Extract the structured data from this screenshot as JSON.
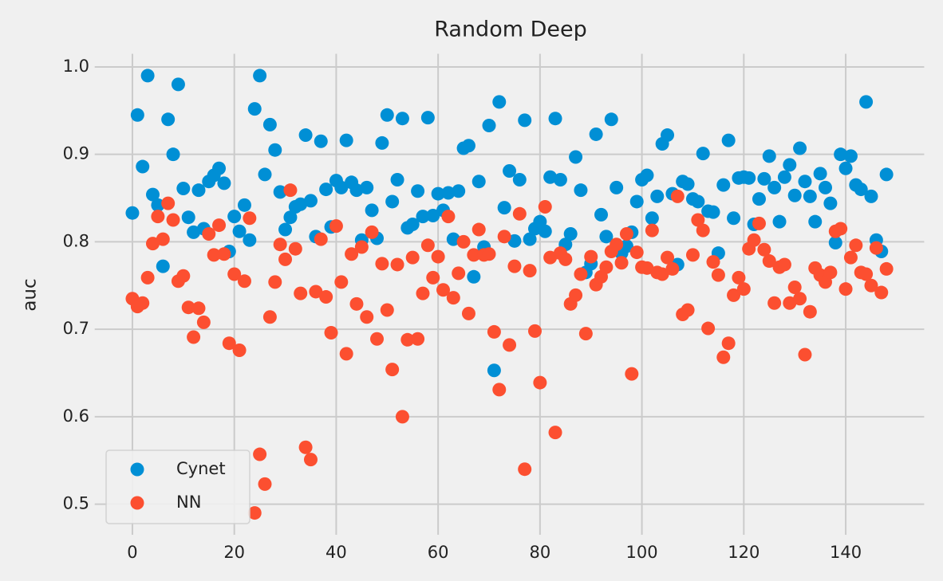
{
  "chart_data": {
    "type": "scatter",
    "title": "Random Deep",
    "ylabel": "auc",
    "x": [
      0,
      1,
      2,
      3,
      4,
      5,
      6,
      7,
      8,
      9,
      10,
      11,
      12,
      13,
      14,
      15,
      16,
      17,
      18,
      19,
      20,
      21,
      22,
      23,
      24,
      25,
      26,
      27,
      28,
      29,
      30,
      31,
      32,
      33,
      34,
      35,
      36,
      37,
      38,
      39,
      40,
      41,
      42,
      43,
      44,
      45,
      46,
      47,
      48,
      49,
      50,
      51,
      52,
      53,
      54,
      55,
      56,
      57,
      58,
      59,
      60,
      61,
      62,
      63,
      64,
      65,
      66,
      67,
      68,
      69,
      70,
      71,
      72,
      73,
      74,
      75,
      76,
      77,
      78,
      79,
      80,
      81,
      82,
      83,
      84,
      85,
      86,
      87,
      88,
      89,
      90,
      91,
      92,
      93,
      94,
      95,
      96,
      97,
      98,
      99,
      100,
      101,
      102,
      103,
      104,
      105,
      106,
      107,
      108,
      109,
      110,
      111,
      112,
      113,
      114,
      115,
      116,
      117,
      118,
      119,
      120,
      121,
      122,
      123,
      124,
      125,
      126,
      127,
      128,
      129,
      130,
      131,
      132,
      133,
      134,
      135,
      136,
      137,
      138,
      139,
      140,
      141,
      142,
      143,
      144,
      145,
      146,
      147,
      148
    ],
    "series": [
      {
        "name": "Cynet",
        "color": "#008fd5",
        "values": [
          0.833,
          0.945,
          0.886,
          0.99,
          0.854,
          0.842,
          0.772,
          0.94,
          0.9,
          0.98,
          0.861,
          0.828,
          0.811,
          0.859,
          0.815,
          0.869,
          0.876,
          0.884,
          0.867,
          0.789,
          0.829,
          0.812,
          0.842,
          0.802,
          0.952,
          0.99,
          0.877,
          0.934,
          0.905,
          0.857,
          0.814,
          0.828,
          0.84,
          0.843,
          0.922,
          0.847,
          0.806,
          0.915,
          0.86,
          0.817,
          0.87,
          0.862,
          0.916,
          0.868,
          0.859,
          0.802,
          0.862,
          0.836,
          0.804,
          0.913,
          0.945,
          0.846,
          0.871,
          0.941,
          0.816,
          0.82,
          0.858,
          0.829,
          0.942,
          0.83,
          0.855,
          0.836,
          0.856,
          0.803,
          0.858,
          0.907,
          0.91,
          0.76,
          0.869,
          0.794,
          0.933,
          0.653,
          0.96,
          0.839,
          0.881,
          0.801,
          0.871,
          0.939,
          0.803,
          0.815,
          0.823,
          0.812,
          0.874,
          0.941,
          0.871,
          0.797,
          0.809,
          0.897,
          0.859,
          0.765,
          0.775,
          0.923,
          0.831,
          0.806,
          0.94,
          0.862,
          0.787,
          0.795,
          0.811,
          0.846,
          0.871,
          0.876,
          0.827,
          0.852,
          0.912,
          0.922,
          0.855,
          0.774,
          0.869,
          0.866,
          0.849,
          0.846,
          0.901,
          0.835,
          0.834,
          0.787,
          0.865,
          0.916,
          0.827,
          0.873,
          0.874,
          0.873,
          0.82,
          0.849,
          0.872,
          0.898,
          0.862,
          0.823,
          0.874,
          0.888,
          0.853,
          0.907,
          0.869,
          0.852,
          0.823,
          0.878,
          0.862,
          0.844,
          0.799,
          0.9,
          0.884,
          0.898,
          0.865,
          0.86,
          0.96,
          0.852,
          0.802,
          0.789,
          0.877
        ]
      },
      {
        "name": "NN",
        "color": "#fc4f30",
        "values": [
          0.735,
          0.726,
          0.73,
          0.759,
          0.798,
          0.829,
          0.803,
          0.844,
          0.825,
          0.755,
          0.761,
          0.725,
          0.691,
          0.724,
          0.708,
          0.809,
          0.785,
          0.819,
          0.786,
          0.684,
          0.763,
          0.676,
          0.755,
          0.827,
          0.49,
          0.557,
          0.523,
          0.714,
          0.754,
          0.797,
          0.78,
          0.859,
          0.792,
          0.741,
          0.565,
          0.551,
          0.743,
          0.803,
          0.737,
          0.696,
          0.818,
          0.754,
          0.672,
          0.786,
          0.729,
          0.794,
          0.714,
          0.811,
          0.689,
          0.775,
          0.722,
          0.654,
          0.774,
          0.6,
          0.688,
          0.782,
          0.689,
          0.741,
          0.796,
          0.759,
          0.783,
          0.745,
          0.829,
          0.736,
          0.764,
          0.8,
          0.718,
          0.785,
          0.814,
          0.785,
          0.786,
          0.697,
          0.631,
          0.806,
          0.682,
          0.772,
          0.832,
          0.54,
          0.767,
          0.698,
          0.639,
          0.84,
          0.782,
          0.582,
          0.787,
          0.78,
          0.729,
          0.739,
          0.763,
          0.695,
          0.783,
          0.751,
          0.76,
          0.771,
          0.789,
          0.797,
          0.776,
          0.809,
          0.649,
          0.788,
          0.771,
          0.77,
          0.813,
          0.765,
          0.763,
          0.782,
          0.769,
          0.852,
          0.717,
          0.722,
          0.785,
          0.825,
          0.813,
          0.701,
          0.777,
          0.762,
          0.668,
          0.684,
          0.739,
          0.759,
          0.746,
          0.792,
          0.802,
          0.821,
          0.791,
          0.778,
          0.73,
          0.771,
          0.774,
          0.73,
          0.748,
          0.735,
          0.671,
          0.72,
          0.77,
          0.762,
          0.754,
          0.765,
          0.812,
          0.815,
          0.746,
          0.782,
          0.796,
          0.765,
          0.763,
          0.75,
          0.793,
          0.742,
          0.769
        ]
      }
    ],
    "xlim": [
      -7.4,
      155.4
    ],
    "ylim": [
      0.465,
      1.015
    ],
    "xticks": [
      0,
      20,
      40,
      60,
      80,
      100,
      120,
      140
    ],
    "yticks": [
      0.5,
      0.6,
      0.7,
      0.8,
      0.9,
      {
        "value": 1,
        "label": "1.0"
      }
    ],
    "grid": true,
    "legend": "lower left"
  }
}
